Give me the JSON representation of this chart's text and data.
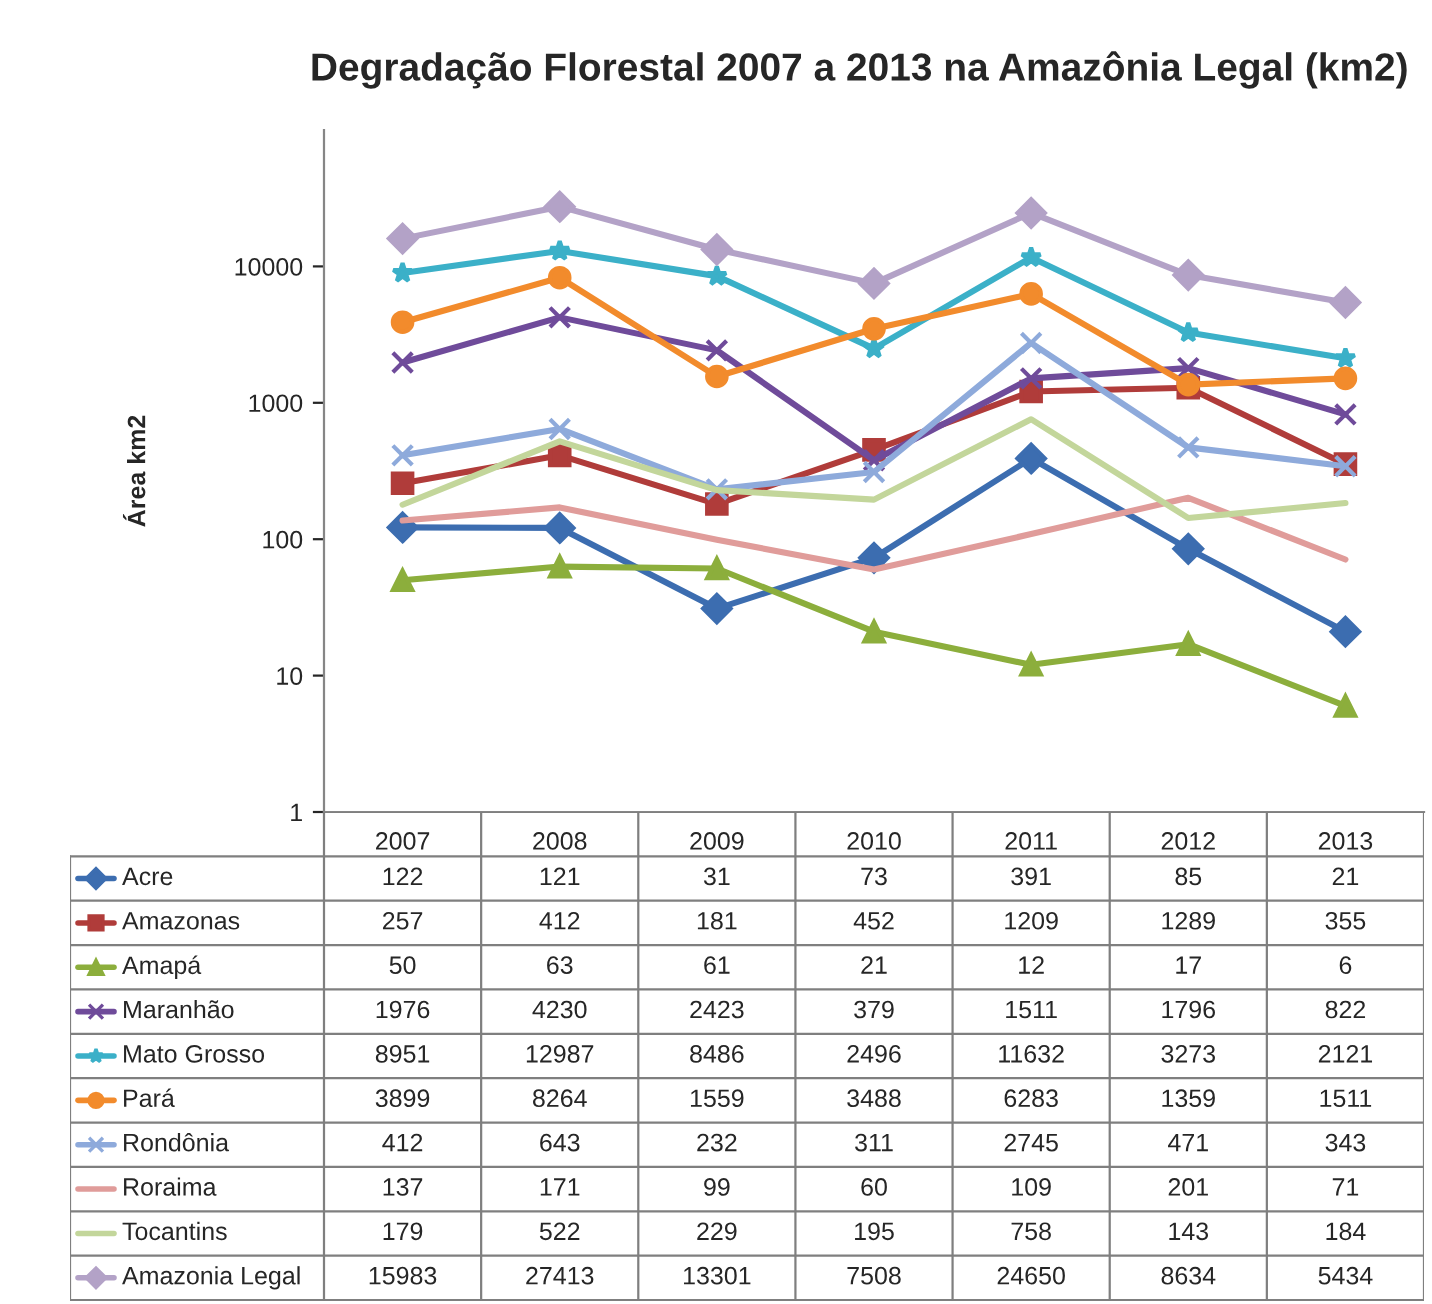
{
  "chart_data": {
    "type": "line",
    "title": "Degradação Florestal 2007 a 2013 na Amazônia Legal (km2)",
    "ylabel": "Área km2",
    "categories": [
      "2007",
      "2008",
      "2009",
      "2010",
      "2011",
      "2012",
      "2013"
    ],
    "log": true,
    "ylim": [
      1,
      100000
    ],
    "yticks": [
      1,
      10,
      100,
      1000,
      10000
    ],
    "grid": false,
    "legend": "bottom",
    "data_labels": true,
    "series": [
      {
        "name": "Acre",
        "color": "#3c6db0",
        "marker": "diamond",
        "values": [
          122,
          121,
          31,
          73,
          391,
          85,
          21
        ]
      },
      {
        "name": "Amazonas",
        "color": "#b03c3a",
        "marker": "square",
        "values": [
          257,
          412,
          181,
          452,
          1209,
          1289,
          355
        ]
      },
      {
        "name": "Amapá",
        "color": "#8cae3c",
        "marker": "triangle",
        "values": [
          50,
          63,
          61,
          21,
          12,
          17,
          6
        ]
      },
      {
        "name": "Maranhão",
        "color": "#6f4b9a",
        "marker": "cross",
        "values": [
          1976,
          4230,
          2423,
          379,
          1511,
          1796,
          822
        ]
      },
      {
        "name": "Mato Grosso",
        "color": "#3bb0c8",
        "marker": "star",
        "values": [
          8951,
          12987,
          8486,
          2496,
          11632,
          3273,
          2121
        ]
      },
      {
        "name": "Pará",
        "color": "#f28b2c",
        "marker": "circle",
        "values": [
          3899,
          8264,
          1559,
          3488,
          6283,
          1359,
          1511
        ]
      },
      {
        "name": "Rondônia",
        "color": "#8eaadb",
        "marker": "cross",
        "values": [
          412,
          643,
          232,
          311,
          2745,
          471,
          343
        ]
      },
      {
        "name": "Roraima",
        "color": "#e09c9a",
        "marker": "none",
        "values": [
          137,
          171,
          99,
          60,
          109,
          201,
          71
        ]
      },
      {
        "name": "Tocantins",
        "color": "#c3d69b",
        "marker": "none",
        "values": [
          179,
          522,
          229,
          195,
          758,
          143,
          184
        ]
      },
      {
        "name": "Amazonia Legal",
        "color": "#b3a2c7",
        "marker": "diamond",
        "values": [
          15983,
          27413,
          13301,
          7508,
          24650,
          8634,
          5434
        ]
      }
    ]
  }
}
